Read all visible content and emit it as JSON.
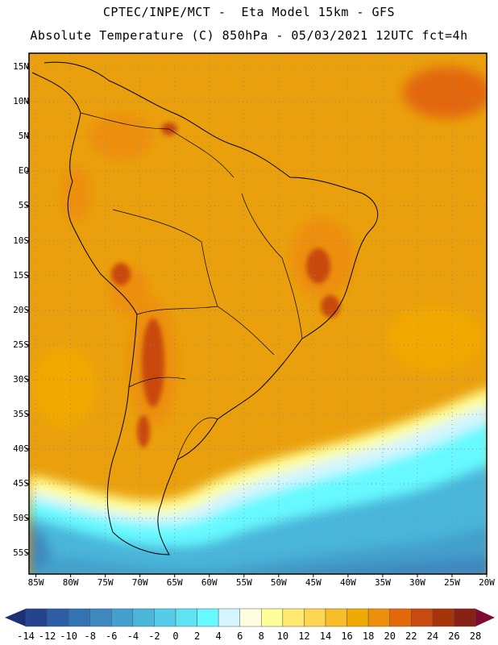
{
  "title": {
    "line1": "CPTEC/INPE/MCT -  Eta Model 15km - GFS",
    "line2": "Absolute Temperature (C) 850hPa - 05/03/2021 12UTC fct=4h"
  },
  "map": {
    "lon_range": [
      -86,
      -20
    ],
    "lat_range": [
      -58,
      17
    ],
    "lat_labels": [
      "15N",
      "10N",
      "5N",
      "EQ",
      "5S",
      "10S",
      "15S",
      "20S",
      "25S",
      "30S",
      "35S",
      "40S",
      "45S",
      "50S",
      "55S"
    ],
    "lat_values": [
      15,
      10,
      5,
      0,
      -5,
      -10,
      -15,
      -20,
      -25,
      -30,
      -35,
      -40,
      -45,
      -50,
      -55
    ],
    "lon_labels": [
      "85W",
      "80W",
      "75W",
      "70W",
      "65W",
      "60W",
      "55W",
      "50W",
      "45W",
      "40W",
      "35W",
      "30W",
      "25W",
      "20W"
    ],
    "lon_values": [
      -85,
      -80,
      -75,
      -70,
      -65,
      -60,
      -55,
      -50,
      -45,
      -40,
      -35,
      -30,
      -25,
      -20
    ],
    "grid": true,
    "grid_style": "dotted"
  },
  "colorbar": {
    "labels": [
      "-14",
      "-12",
      "-10",
      "-8",
      "-6",
      "-4",
      "-2",
      "0",
      "2",
      "4",
      "6",
      "8",
      "10",
      "12",
      "14",
      "16",
      "18",
      "20",
      "22",
      "24",
      "26",
      "28"
    ],
    "colors": [
      "#24448f",
      "#2d5ea5",
      "#3473b2",
      "#3d88bf",
      "#43a0cc",
      "#4ab6da",
      "#55ccea",
      "#5de3f2",
      "#66f9ff",
      "#d4f5ff",
      "#fffde0",
      "#ffff99",
      "#ffe970",
      "#fcd652",
      "#f7be2a",
      "#f1a905",
      "#ed8f0a",
      "#e3680a",
      "#c94a0e",
      "#a83409",
      "#872214"
    ],
    "end_low": "#1d2f75",
    "end_high": "#7d0c2e"
  }
}
